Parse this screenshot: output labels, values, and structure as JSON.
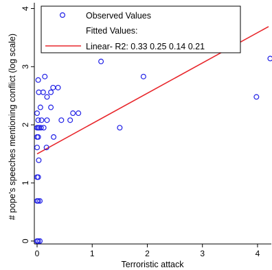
{
  "chart_data": {
    "type": "scatter",
    "xlabel": "Terroristic attack",
    "ylabel": "# pope's speeches mentioning conflict (log scale)",
    "xlim": [
      -0.05,
      4.25
    ],
    "ylim": [
      -0.05,
      4.1
    ],
    "xticks": [
      0,
      1,
      2,
      3,
      4
    ],
    "yticks": [
      0,
      1,
      2,
      3,
      4
    ],
    "grid": false,
    "legend": {
      "placement": "top-left",
      "observed_label": "Observed Values",
      "fitted_label": "Fitted Values:",
      "linear_label": "Linear- R2:  0.33 0.25 0.14 0.21"
    },
    "colors": {
      "observed": "#1f1fe6",
      "fitted": "#e8262b"
    },
    "series": [
      {
        "name": "Observed Values",
        "kind": "scatter",
        "points": [
          [
            0.0,
            0.0
          ],
          [
            0.02,
            0.0
          ],
          [
            0.05,
            0.0
          ],
          [
            0.0,
            0.69
          ],
          [
            0.02,
            0.69
          ],
          [
            0.05,
            0.69
          ],
          [
            0.0,
            1.1
          ],
          [
            0.02,
            1.1
          ],
          [
            0.03,
            1.39
          ],
          [
            0.0,
            1.61
          ],
          [
            0.17,
            1.61
          ],
          [
            0.0,
            1.79
          ],
          [
            0.02,
            1.79
          ],
          [
            0.3,
            1.79
          ],
          [
            0.0,
            1.95
          ],
          [
            0.02,
            1.95
          ],
          [
            0.04,
            1.95
          ],
          [
            0.07,
            1.95
          ],
          [
            0.12,
            1.95
          ],
          [
            1.5,
            1.95
          ],
          [
            0.02,
            2.08
          ],
          [
            0.08,
            2.08
          ],
          [
            0.18,
            2.08
          ],
          [
            0.44,
            2.08
          ],
          [
            0.6,
            2.08
          ],
          [
            0.0,
            2.2
          ],
          [
            0.65,
            2.2
          ],
          [
            0.75,
            2.2
          ],
          [
            0.06,
            2.3
          ],
          [
            0.25,
            2.3
          ],
          [
            0.18,
            2.48
          ],
          [
            0.03,
            2.56
          ],
          [
            0.11,
            2.56
          ],
          [
            0.25,
            2.56
          ],
          [
            0.29,
            2.64
          ],
          [
            0.38,
            2.64
          ],
          [
            0.02,
            2.77
          ],
          [
            0.14,
            2.83
          ],
          [
            1.93,
            2.83
          ],
          [
            3.98,
            2.48
          ],
          [
            1.16,
            3.09
          ],
          [
            4.23,
            3.14
          ]
        ]
      },
      {
        "name": "Linear- R2:  0.33 0.25 0.14 0.21",
        "kind": "line",
        "points": [
          [
            0.0,
            1.5
          ],
          [
            4.2,
            3.69
          ]
        ]
      }
    ]
  }
}
